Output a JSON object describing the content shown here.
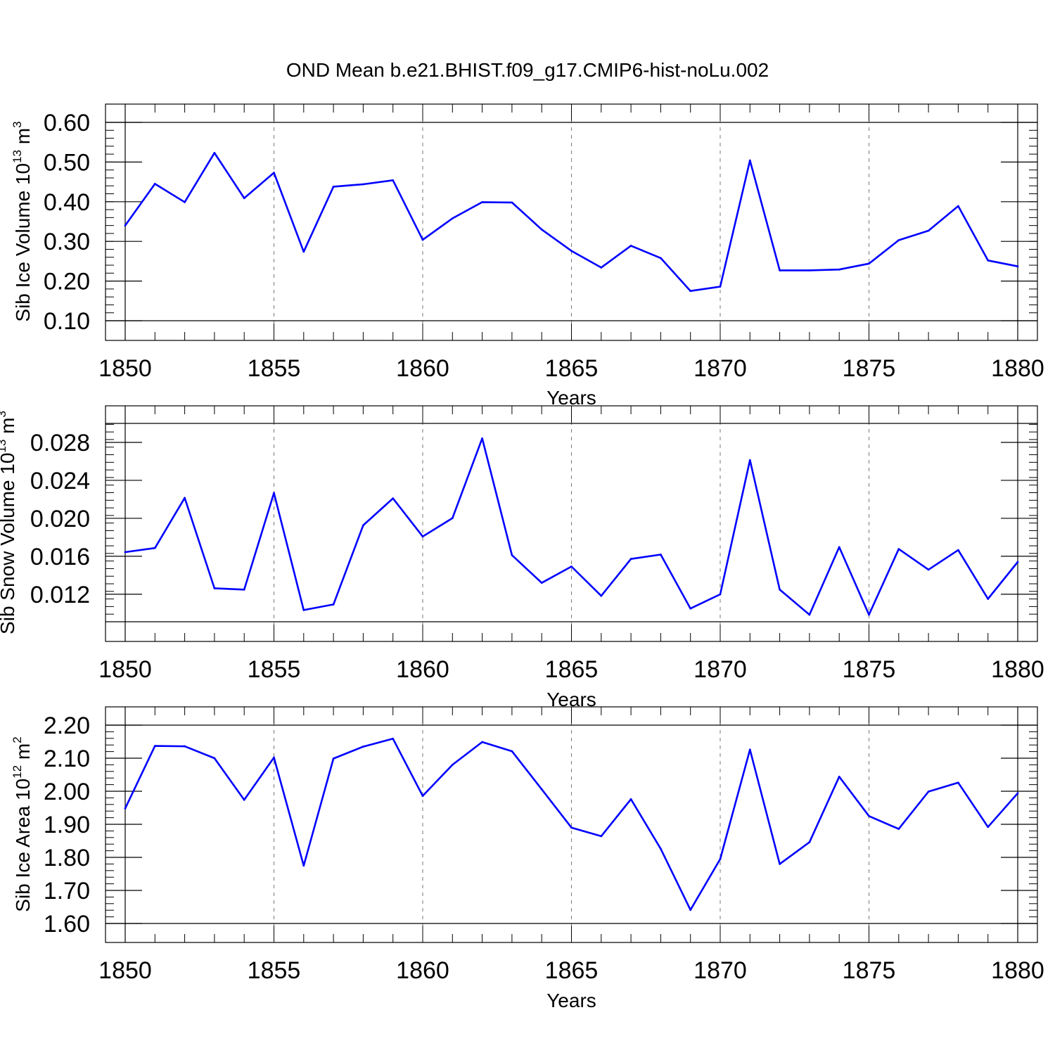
{
  "title": "OND Mean b.e21.BHIST.f09_g17.CMIP6-hist-noLu.002",
  "colors": {
    "series": "#0000ff",
    "axis": "#000000",
    "grid": "#777777"
  },
  "chart_data": [
    {
      "type": "line",
      "xlabel": "Years",
      "ylabel": "Sib Ice Volume 10",
      "ylabel_exp": "13",
      "ylabel_unit": " m",
      "ylabel_unit_exp": "3",
      "xlim": [
        1850,
        1880
      ],
      "ylim": [
        0.1,
        0.6
      ],
      "x_ticks": [
        1850,
        1855,
        1860,
        1865,
        1870,
        1875,
        1880
      ],
      "x_tick_labels": [
        "1850",
        "1855",
        "1860",
        "1865",
        "1870",
        "1875",
        "1880"
      ],
      "y_ticks": [
        0.1,
        0.2,
        0.3,
        0.4,
        0.5,
        0.6
      ],
      "y_tick_labels": [
        "0.10",
        "0.20",
        "0.30",
        "0.40",
        "0.50",
        "0.60"
      ],
      "y_minor_step": 0.02,
      "grid": "vertical-dashed",
      "x": [
        1850,
        1851,
        1852,
        1853,
        1854,
        1855,
        1856,
        1857,
        1858,
        1859,
        1860,
        1861,
        1862,
        1863,
        1864,
        1865,
        1866,
        1867,
        1868,
        1869,
        1870,
        1871,
        1872,
        1873,
        1874,
        1875,
        1876,
        1877,
        1878,
        1879,
        1880
      ],
      "values": [
        0.34,
        0.445,
        0.399,
        0.523,
        0.409,
        0.473,
        0.274,
        0.438,
        0.444,
        0.454,
        0.304,
        0.358,
        0.399,
        0.398,
        0.33,
        0.276,
        0.234,
        0.289,
        0.258,
        0.175,
        0.186,
        0.504,
        0.227,
        0.227,
        0.229,
        0.244,
        0.303,
        0.327,
        0.389,
        0.252,
        0.237
      ]
    },
    {
      "type": "line",
      "xlabel": "Years",
      "ylabel": "Sib Snow Volume 10",
      "ylabel_exp": "13",
      "ylabel_unit": " m",
      "ylabel_unit_exp": "3",
      "xlim": [
        1850,
        1880
      ],
      "ylim": [
        0.0091,
        0.03
      ],
      "x_ticks": [
        1850,
        1855,
        1860,
        1865,
        1870,
        1875,
        1880
      ],
      "x_tick_labels": [
        "1850",
        "1855",
        "1860",
        "1865",
        "1870",
        "1875",
        "1880"
      ],
      "y_ticks": [
        0.012,
        0.016,
        0.02,
        0.024,
        0.028
      ],
      "y_tick_labels": [
        "0.012",
        "0.016",
        "0.020",
        "0.024",
        "0.028"
      ],
      "y_minor_step": 0.0008,
      "grid": "vertical-dashed",
      "x": [
        1850,
        1851,
        1852,
        1853,
        1854,
        1855,
        1856,
        1857,
        1858,
        1859,
        1860,
        1861,
        1862,
        1863,
        1864,
        1865,
        1866,
        1867,
        1868,
        1869,
        1870,
        1871,
        1872,
        1873,
        1874,
        1875,
        1876,
        1877,
        1878,
        1879,
        1880
      ],
      "values": [
        0.01644,
        0.01687,
        0.02215,
        0.01263,
        0.01249,
        0.02267,
        0.01033,
        0.01092,
        0.01926,
        0.0221,
        0.01808,
        0.02002,
        0.02842,
        0.01612,
        0.0132,
        0.01492,
        0.01183,
        0.01572,
        0.01618,
        0.01049,
        0.01199,
        0.02613,
        0.01249,
        0.00984,
        0.01696,
        0.00984,
        0.01676,
        0.01459,
        0.01665,
        0.01151,
        0.0154
      ]
    },
    {
      "type": "line",
      "xlabel": "Years",
      "ylabel": "Sib Ice Area 10",
      "ylabel_exp": "12",
      "ylabel_unit": " m",
      "ylabel_unit_exp": "2",
      "xlim": [
        1850,
        1880
      ],
      "ylim": [
        1.6,
        2.2
      ],
      "x_ticks": [
        1850,
        1855,
        1860,
        1865,
        1870,
        1875,
        1880
      ],
      "x_tick_labels": [
        "1850",
        "1855",
        "1860",
        "1865",
        "1870",
        "1875",
        "1880"
      ],
      "y_ticks": [
        1.6,
        1.7,
        1.8,
        1.9,
        2.0,
        2.1,
        2.2
      ],
      "y_tick_labels": [
        "1.60",
        "1.70",
        "1.80",
        "1.90",
        "2.00",
        "2.10",
        "2.20"
      ],
      "y_minor_step": 0.02,
      "grid": "vertical-dashed",
      "x": [
        1850,
        1851,
        1852,
        1853,
        1854,
        1855,
        1856,
        1857,
        1858,
        1859,
        1860,
        1861,
        1862,
        1863,
        1864,
        1865,
        1866,
        1867,
        1868,
        1869,
        1870,
        1871,
        1872,
        1873,
        1874,
        1875,
        1876,
        1877,
        1878,
        1879,
        1880
      ],
      "values": [
        1.948,
        2.137,
        2.136,
        2.1,
        1.974,
        2.102,
        1.775,
        2.099,
        2.135,
        2.159,
        1.986,
        2.08,
        2.149,
        2.121,
        2.006,
        1.89,
        1.864,
        1.976,
        1.826,
        1.641,
        1.795,
        2.126,
        1.78,
        1.846,
        2.044,
        1.925,
        1.886,
        1.999,
        2.026,
        1.892,
        1.994
      ]
    }
  ]
}
